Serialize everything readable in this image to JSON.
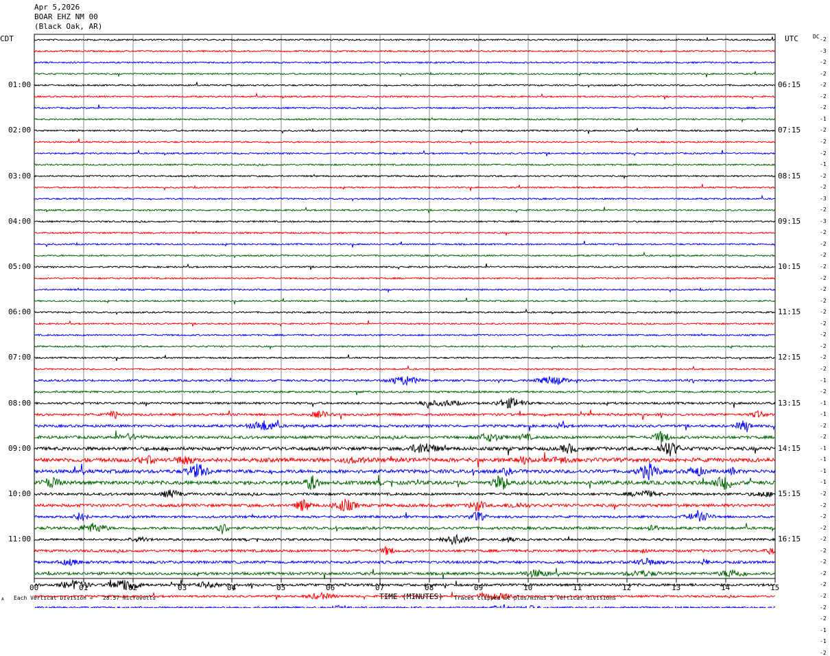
{
  "header": {
    "date": "Apr 5,2026",
    "station": "BOAR EHZ NM 00",
    "location": "(Black Oak, AR)"
  },
  "left_tz": "CDT",
  "right_tz": "UTC",
  "dc_label": "DC",
  "chart_data": {
    "type": "line",
    "title": "BOAR EHZ NM 00",
    "xlabel": "TIME (MINUTES)",
    "xlim": [
      0,
      15
    ],
    "x_ticks": [
      "00",
      "01",
      "02",
      "03",
      "04",
      "05",
      "06",
      "07",
      "08",
      "09",
      "10",
      "11",
      "12",
      "13",
      "14",
      "15"
    ],
    "left_hour_labels": [
      "01:00",
      "02:00",
      "03:00",
      "04:00",
      "05:00",
      "06:00",
      "07:00",
      "08:00",
      "09:00",
      "10:00",
      "11:00"
    ],
    "right_hour_labels": [
      "06:15",
      "07:15",
      "08:15",
      "09:15",
      "10:15",
      "11:15",
      "12:15",
      "13:15",
      "14:15",
      "15:15",
      "16:15"
    ],
    "trace_colors": [
      "#000000",
      "#ff0000",
      "#0000ff",
      "#006400"
    ],
    "dc_offsets": [
      "-2",
      "-3",
      "-2",
      "-2",
      "-2",
      "-2",
      "-2",
      "-1",
      "-2",
      "-2",
      "-2",
      "-1",
      "-2",
      "-2",
      "-3",
      "-2",
      "-3",
      "-2",
      "-2",
      "-2",
      "-2",
      "-2",
      "-2",
      "-2",
      "-2",
      "-2",
      "-2",
      "-2",
      "-2",
      "-2",
      "-1",
      "-2",
      "-1",
      "-1",
      "-2",
      "-2",
      "-1",
      "-1",
      "-1",
      "-1",
      "-2",
      "-2",
      "-2",
      "-2",
      "-2",
      "-2",
      "-2",
      "-2",
      "-2",
      "-2",
      "-2",
      "-2",
      "-1",
      "-1",
      "-2"
    ],
    "activity": [
      1,
      1,
      1,
      1,
      1,
      1,
      1,
      1,
      1,
      1,
      1,
      1,
      1,
      1,
      1,
      1,
      1,
      1,
      1,
      1,
      1,
      1,
      1,
      1,
      1,
      1,
      1,
      1,
      1,
      1,
      1.3,
      1.2,
      1.4,
      1.5,
      1.6,
      1.8,
      2.2,
      2.6,
      2.3,
      2.4,
      1.6,
      1.9,
      1.5,
      1.7,
      1.4,
      1.6,
      1.7,
      1.7,
      1.6,
      1.3,
      1.3,
      1.6,
      1.3,
      1.1,
      1
    ]
  },
  "footer": {
    "scale_note": "Each Vertical Division =   28.57 microvolts",
    "clip_note": "Traces clipped at plus/minus 5 vertical divisions",
    "corner_mark": "A"
  }
}
